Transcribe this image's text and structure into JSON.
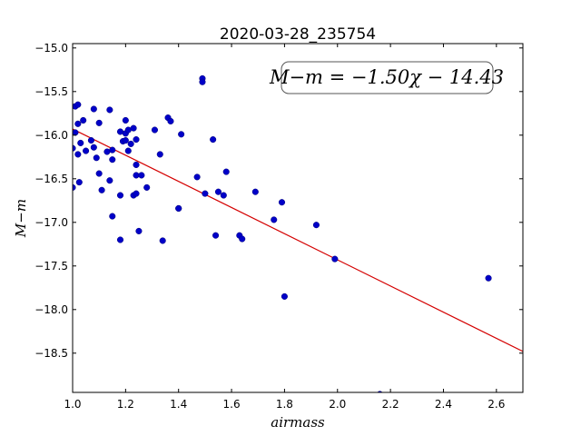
{
  "chart_data": {
    "type": "scatter",
    "title": "2020-03-28_235754",
    "xlabel": "airmass",
    "ylabel": "M−m",
    "xlim": [
      1.0,
      2.7
    ],
    "ylim": [
      -18.95,
      -14.95
    ],
    "y_inverted": true,
    "grid": false,
    "x_ticks": [
      1.0,
      1.2,
      1.4,
      1.6,
      1.8,
      2.0,
      2.2,
      2.4,
      2.6
    ],
    "x_tick_labels": [
      "1.0",
      "1.2",
      "1.4",
      "1.6",
      "1.8",
      "2.0",
      "2.2",
      "2.4",
      "2.6"
    ],
    "y_ticks": [
      -15.0,
      -15.5,
      -16.0,
      -16.5,
      -17.0,
      -17.5,
      -18.0,
      -18.5
    ],
    "y_tick_labels": [
      "−15.0",
      "−15.5",
      "−16.0",
      "−16.5",
      "−17.0",
      "−17.5",
      "−18.0",
      "−18.5"
    ],
    "annotation": "M−m = −1.50χ − 14.43",
    "fit": {
      "slope": -1.5,
      "intercept": -14.43,
      "color": "#d40000"
    },
    "marker_color": "#0000c8",
    "points": [
      [
        1.0,
        -16.15
      ],
      [
        1.0,
        -16.6
      ],
      [
        1.01,
        -15.97
      ],
      [
        1.01,
        -15.67
      ],
      [
        1.02,
        -15.65
      ],
      [
        1.02,
        -15.87
      ],
      [
        1.02,
        -16.22
      ],
      [
        1.025,
        -16.54
      ],
      [
        1.03,
        -16.09
      ],
      [
        1.04,
        -15.83
      ],
      [
        1.05,
        -16.18
      ],
      [
        1.07,
        -16.06
      ],
      [
        1.08,
        -16.14
      ],
      [
        1.08,
        -15.7
      ],
      [
        1.09,
        -16.26
      ],
      [
        1.1,
        -16.44
      ],
      [
        1.1,
        -15.86
      ],
      [
        1.11,
        -16.63
      ],
      [
        1.13,
        -16.19
      ],
      [
        1.14,
        -15.71
      ],
      [
        1.14,
        -16.52
      ],
      [
        1.15,
        -16.28
      ],
      [
        1.15,
        -16.17
      ],
      [
        1.15,
        -16.93
      ],
      [
        1.18,
        -15.96
      ],
      [
        1.18,
        -16.69
      ],
      [
        1.18,
        -17.2
      ],
      [
        1.19,
        -16.07
      ],
      [
        1.2,
        -15.98
      ],
      [
        1.2,
        -16.06
      ],
      [
        1.2,
        -15.83
      ],
      [
        1.21,
        -15.94
      ],
      [
        1.21,
        -16.18
      ],
      [
        1.22,
        -16.1
      ],
      [
        1.23,
        -15.92
      ],
      [
        1.23,
        -16.69
      ],
      [
        1.24,
        -16.34
      ],
      [
        1.24,
        -16.05
      ],
      [
        1.24,
        -16.67
      ],
      [
        1.24,
        -16.46
      ],
      [
        1.25,
        -17.1
      ],
      [
        1.26,
        -16.46
      ],
      [
        1.28,
        -16.6
      ],
      [
        1.31,
        -15.94
      ],
      [
        1.33,
        -16.22
      ],
      [
        1.34,
        -17.21
      ],
      [
        1.36,
        -15.8
      ],
      [
        1.37,
        -15.84
      ],
      [
        1.4,
        -16.84
      ],
      [
        1.4,
        -16.84
      ],
      [
        1.41,
        -15.99
      ],
      [
        1.47,
        -16.48
      ],
      [
        1.49,
        -15.35
      ],
      [
        1.49,
        -15.39
      ],
      [
        1.5,
        -16.67
      ],
      [
        1.53,
        -16.05
      ],
      [
        1.54,
        -17.15
      ],
      [
        1.55,
        -16.65
      ],
      [
        1.57,
        -16.69
      ],
      [
        1.58,
        -16.42
      ],
      [
        1.63,
        -17.15
      ],
      [
        1.64,
        -17.19
      ],
      [
        1.69,
        -16.65
      ],
      [
        1.76,
        -16.97
      ],
      [
        1.79,
        -16.77
      ],
      [
        1.8,
        -17.85
      ],
      [
        1.92,
        -17.03
      ],
      [
        1.99,
        -17.42
      ],
      [
        2.57,
        -17.64
      ],
      [
        2.16,
        -18.97
      ]
    ]
  }
}
